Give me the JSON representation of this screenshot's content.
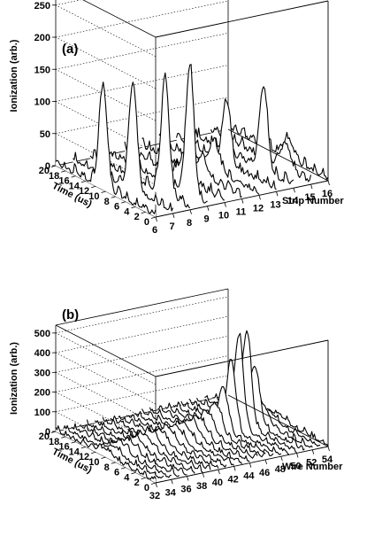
{
  "chart_data": [
    {
      "type": "lego",
      "panel_label": "(a)",
      "title": "",
      "xlabel": "Strip Number",
      "ylabel": "Time (us)",
      "zlabel": "Ionization (arb.)",
      "x_ticks": [
        "6",
        "7",
        "8",
        "9",
        "10",
        "11",
        "12",
        "13",
        "14",
        "15",
        "16"
      ],
      "y_ticks": [
        "0",
        "2",
        "4",
        "6",
        "8",
        "10",
        "12",
        "14",
        "16",
        "18",
        "20"
      ],
      "z_ticks": [
        "0",
        "50",
        "100",
        "150",
        "200",
        "250"
      ],
      "xlim": [
        6,
        16
      ],
      "ylim": [
        0,
        20
      ],
      "zlim": [
        0,
        280
      ],
      "grid": true,
      "traces": [
        {
          "x": 6,
          "peak_time": 10.5,
          "peak_value": 160,
          "width": 0.8
        },
        {
          "x": 7,
          "peak_time": 8.0,
          "peak_value": 170,
          "width": 0.8
        },
        {
          "x": 8,
          "peak_time": 5.0,
          "peak_value": 180,
          "width": 0.8
        },
        {
          "x": 9,
          "peak_time": 3.5,
          "peak_value": 200,
          "width": 0.8
        },
        {
          "x": 10,
          "peak_time": 8.0,
          "peak_value": 40,
          "width": 1.0
        },
        {
          "x": 11,
          "peak_time": 8.0,
          "peak_value": 30,
          "width": 1.0
        },
        {
          "x": 12,
          "peak_time": 9.0,
          "peak_value": 45,
          "width": 1.0
        },
        {
          "x": 13,
          "peak_time": 10.0,
          "peak_value": 100,
          "width": 0.8
        },
        {
          "x": 14,
          "peak_time": 6.0,
          "peak_value": 130,
          "width": 0.8
        },
        {
          "x": 15,
          "peak_time": 5.0,
          "peak_value": 40,
          "width": 1.0
        },
        {
          "x": 16,
          "peak_time": 8.0,
          "peak_value": 30,
          "width": 1.0
        }
      ]
    },
    {
      "type": "lego",
      "panel_label": "(b)",
      "title": "",
      "xlabel": "Wire Number",
      "ylabel": "Time (us)",
      "zlabel": "Ionization (arb.)",
      "x_ticks": [
        "32",
        "34",
        "36",
        "38",
        "40",
        "42",
        "44",
        "46",
        "48",
        "50",
        "52",
        "54"
      ],
      "y_ticks": [
        "0",
        "2",
        "4",
        "6",
        "8",
        "10",
        "12",
        "14",
        "16",
        "18",
        "20"
      ],
      "z_ticks": [
        "0",
        "100",
        "200",
        "300",
        "400",
        "500"
      ],
      "xlim": [
        32,
        54
      ],
      "ylim": [
        0,
        20
      ],
      "zlim": [
        0,
        540
      ],
      "grid": true,
      "traces": [
        {
          "x": 32,
          "peak_time": 10.0,
          "peak_value": 35,
          "width": 1.5
        },
        {
          "x": 33,
          "peak_time": 10.0,
          "peak_value": 40,
          "width": 1.5
        },
        {
          "x": 34,
          "peak_time": 10.0,
          "peak_value": 50,
          "width": 1.5
        },
        {
          "x": 35,
          "peak_time": 10.0,
          "peak_value": 55,
          "width": 1.5
        },
        {
          "x": 36,
          "peak_time": 10.0,
          "peak_value": 60,
          "width": 1.5
        },
        {
          "x": 37,
          "peak_time": 10.0,
          "peak_value": 65,
          "width": 1.5
        },
        {
          "x": 38,
          "peak_time": 10.0,
          "peak_value": 70,
          "width": 1.5
        },
        {
          "x": 39,
          "peak_time": 10.0,
          "peak_value": 70,
          "width": 1.5
        },
        {
          "x": 40,
          "peak_time": 10.0,
          "peak_value": 75,
          "width": 1.5
        },
        {
          "x": 41,
          "peak_time": 10.0,
          "peak_value": 75,
          "width": 1.5
        },
        {
          "x": 42,
          "peak_time": 10.0,
          "peak_value": 80,
          "width": 1.5
        },
        {
          "x": 43,
          "peak_time": 10.0,
          "peak_value": 85,
          "width": 1.5
        },
        {
          "x": 44,
          "peak_time": 10.0,
          "peak_value": 90,
          "width": 1.5
        },
        {
          "x": 45,
          "peak_time": 10.0,
          "peak_value": 110,
          "width": 1.3
        },
        {
          "x": 46,
          "peak_time": 10.0,
          "peak_value": 150,
          "width": 1.2
        },
        {
          "x": 47,
          "peak_time": 10.0,
          "peak_value": 220,
          "width": 1.0
        },
        {
          "x": 48,
          "peak_time": 10.0,
          "peak_value": 350,
          "width": 0.9
        },
        {
          "x": 49,
          "peak_time": 10.0,
          "peak_value": 470,
          "width": 0.9
        },
        {
          "x": 50,
          "peak_time": 10.0,
          "peak_value": 480,
          "width": 0.9
        },
        {
          "x": 51,
          "peak_time": 10.0,
          "peak_value": 300,
          "width": 1.0
        },
        {
          "x": 52,
          "peak_time": 10.0,
          "peak_value": 100,
          "width": 1.2
        },
        {
          "x": 53,
          "peak_time": 10.0,
          "peak_value": 45,
          "width": 1.5
        },
        {
          "x": 54,
          "peak_time": 10.0,
          "peak_value": 30,
          "width": 1.5
        }
      ]
    }
  ]
}
